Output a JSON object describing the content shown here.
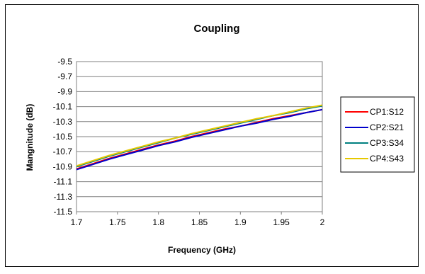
{
  "chart_data": {
    "type": "line",
    "title": "Coupling",
    "xlabel": "Frequency (GHz)",
    "ylabel": "Mangnitude (dB)",
    "xlim": [
      1.7,
      2.0
    ],
    "ylim": [
      -11.5,
      -9.5
    ],
    "xticks": [
      "1.7",
      "1.75",
      "1.8",
      "1.85",
      "1.9",
      "1.95",
      "2"
    ],
    "yticks": [
      "-9.5",
      "-9.7",
      "-9.9",
      "-10.1",
      "-10.3",
      "-10.5",
      "-10.7",
      "-10.9",
      "-11.1",
      "-11.3",
      "-11.5"
    ],
    "grid": "horizontal",
    "legend_position": "right",
    "series": [
      {
        "name": "CP1:S12",
        "color": "#ff0000",
        "x": [
          1.7,
          1.72,
          1.74,
          1.76,
          1.78,
          1.8,
          1.82,
          1.84,
          1.86,
          1.88,
          1.9,
          1.92,
          1.94,
          1.96,
          1.98,
          2.0
        ],
        "y": [
          -10.93,
          -10.86,
          -10.79,
          -10.73,
          -10.67,
          -10.61,
          -10.56,
          -10.5,
          -10.45,
          -10.4,
          -10.36,
          -10.31,
          -10.26,
          -10.22,
          -10.18,
          -10.14
        ]
      },
      {
        "name": "CP2:S21",
        "color": "#0000cc",
        "x": [
          1.7,
          1.72,
          1.74,
          1.76,
          1.78,
          1.8,
          1.82,
          1.84,
          1.86,
          1.88,
          1.9,
          1.92,
          1.94,
          1.96,
          1.98,
          2.0
        ],
        "y": [
          -10.94,
          -10.87,
          -10.8,
          -10.74,
          -10.68,
          -10.62,
          -10.57,
          -10.51,
          -10.46,
          -10.41,
          -10.36,
          -10.32,
          -10.27,
          -10.23,
          -10.18,
          -10.14
        ]
      },
      {
        "name": "CP3:S34",
        "color": "#008080",
        "x": [
          1.7,
          1.72,
          1.74,
          1.76,
          1.78,
          1.8,
          1.82,
          1.84,
          1.86,
          1.88,
          1.9,
          1.92,
          1.94,
          1.96,
          1.98,
          2.0
        ],
        "y": [
          -10.9,
          -10.83,
          -10.76,
          -10.7,
          -10.64,
          -10.58,
          -10.52,
          -10.47,
          -10.42,
          -10.37,
          -10.32,
          -10.27,
          -10.22,
          -10.18,
          -10.13,
          -10.09
        ]
      },
      {
        "name": "CP4:S43",
        "color": "#e6c800",
        "x": [
          1.7,
          1.72,
          1.74,
          1.76,
          1.78,
          1.8,
          1.82,
          1.84,
          1.86,
          1.88,
          1.9,
          1.92,
          1.94,
          1.96,
          1.98,
          2.0
        ],
        "y": [
          -10.89,
          -10.82,
          -10.75,
          -10.69,
          -10.63,
          -10.57,
          -10.52,
          -10.46,
          -10.41,
          -10.36,
          -10.31,
          -10.26,
          -10.22,
          -10.17,
          -10.12,
          -10.08
        ]
      }
    ]
  }
}
